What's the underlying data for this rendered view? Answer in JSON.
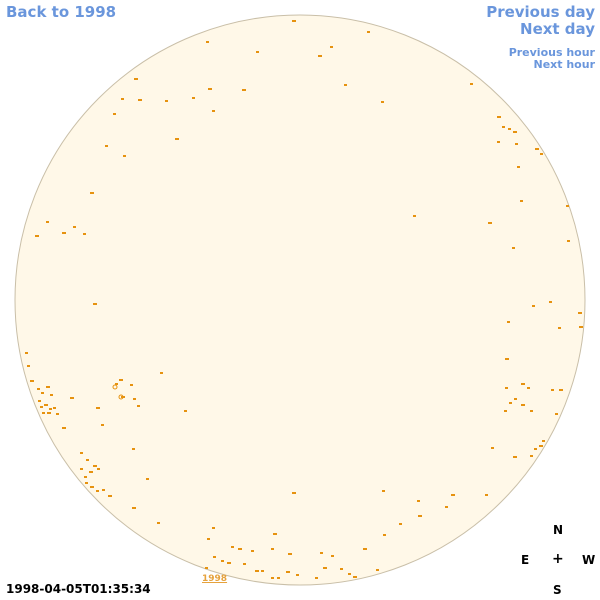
{
  "nav": {
    "back": "Back to 1998",
    "previous_day": "Previous day",
    "next_day": "Next day",
    "previous_hour": "Previous hour",
    "next_hour": "Next hour"
  },
  "timestamp": "1998-04-05T01:35:34",
  "year_link": "1998",
  "compass": {
    "north": "N",
    "east": "E",
    "center": "+",
    "west": "W",
    "south": "S"
  },
  "colors": {
    "disk_fill": "#fff8e8",
    "disk_edge": "#c9bfa8",
    "feature": "#e6920f",
    "link": "#6a96dc"
  }
}
